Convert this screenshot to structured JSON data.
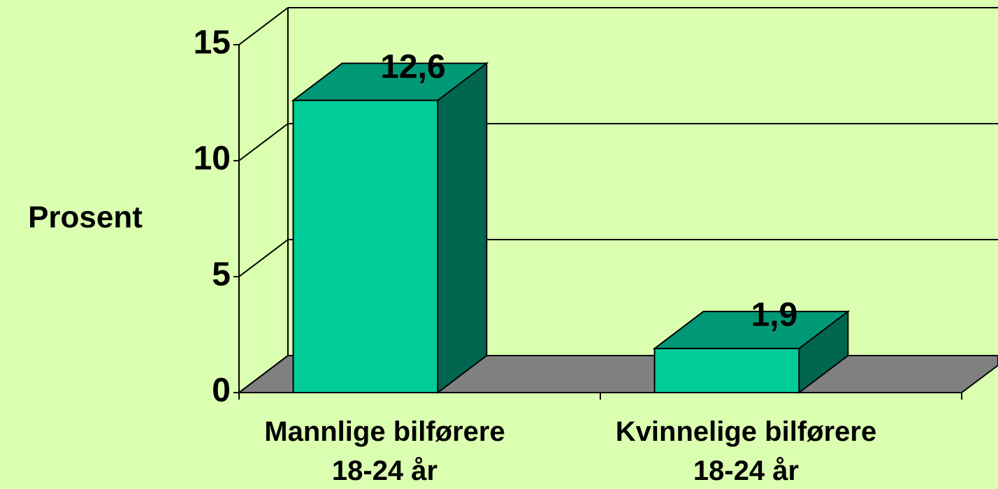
{
  "chart_data": {
    "type": "bar3d",
    "y_label": "Prosent",
    "categories": [
      "Mannlige bilførere\n18-24 år",
      "Kvinnelige bilførere\n18-24 år"
    ],
    "values": [
      12.6,
      1.9
    ],
    "value_labels": [
      "12,6",
      "1,9"
    ],
    "color": "#00cc99",
    "ylim": [
      0,
      15
    ],
    "yticks": [
      0,
      5,
      10,
      15
    ],
    "grid": true
  }
}
